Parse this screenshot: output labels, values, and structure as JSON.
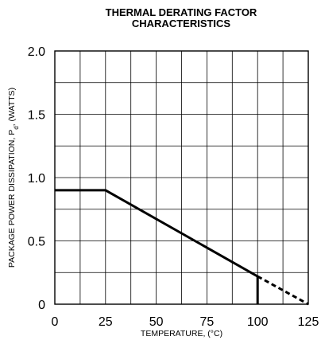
{
  "chart_data": {
    "type": "line",
    "title": "THERMAL DERATING FACTOR",
    "subtitle": "CHARACTERISTICS",
    "xlabel": "TEMPERATURE, (°C)",
    "ylabel": "PACKAGE POWER DISSIPATION, P",
    "ylabel_sub": "d",
    "ylabel_suffix": ", (WATTS)",
    "xlim": [
      0,
      125
    ],
    "ylim": [
      0,
      2.0
    ],
    "grid": true,
    "x_ticks": [
      0,
      25,
      50,
      75,
      100,
      125
    ],
    "x_tick_labels": [
      "0",
      "25",
      "50",
      "75",
      "100",
      "125"
    ],
    "y_ticks": [
      0,
      0.5,
      1.0,
      1.5,
      2.0
    ],
    "y_tick_labels": [
      "0",
      "0.5",
      "1.0",
      "1.5",
      "2.0"
    ],
    "x_minor_step": 12.5,
    "y_minor_step": 0.25,
    "series": [
      {
        "style": "solid",
        "x": [
          0,
          25,
          100
        ],
        "y": [
          0.9,
          0.9,
          0.22
        ]
      },
      {
        "style": "dashed",
        "x": [
          100,
          125
        ],
        "y": [
          0.22,
          0
        ]
      },
      {
        "style": "solid",
        "x": [
          100,
          100
        ],
        "y": [
          0.22,
          0
        ]
      }
    ]
  }
}
